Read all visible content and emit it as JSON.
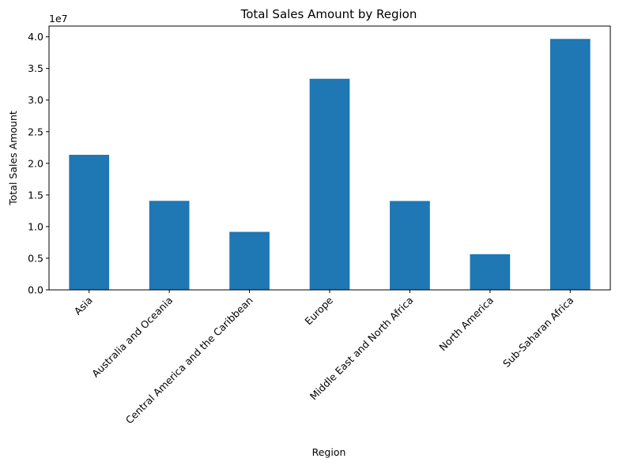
{
  "chart_data": {
    "type": "bar",
    "title": "Total Sales Amount by Region",
    "xlabel": "Region",
    "ylabel": "Total Sales Amount",
    "offset_label": "1e7",
    "categories": [
      "Asia",
      "Australia and Oceania",
      "Central America and the Caribbean",
      "Europe",
      "Middle East and North Africa",
      "North America",
      "Sub-Saharan Africa"
    ],
    "values": [
      21350000,
      14070000,
      9170000,
      33370000,
      14050000,
      5640000,
      39670000
    ],
    "ylim": [
      0,
      41700000
    ],
    "yticks": [
      0,
      5000000,
      10000000,
      15000000,
      20000000,
      25000000,
      30000000,
      35000000,
      40000000
    ],
    "ytick_labels": [
      "0.0",
      "0.5",
      "1.0",
      "1.5",
      "2.0",
      "2.5",
      "3.0",
      "3.5",
      "4.0"
    ],
    "bar_color": "#1f77b4",
    "grid": false,
    "legend": "none"
  }
}
